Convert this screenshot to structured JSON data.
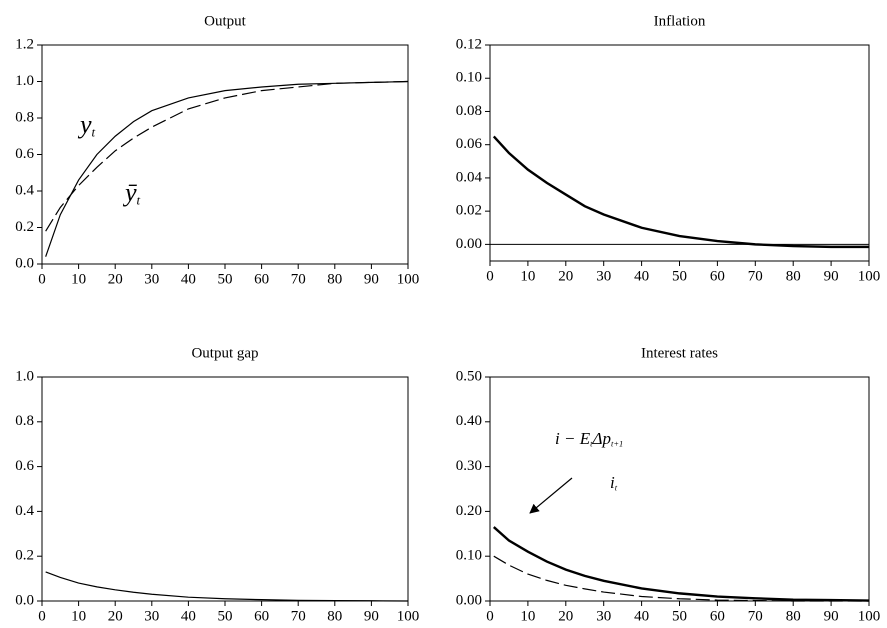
{
  "chart_data": [
    {
      "type": "line",
      "title": "Output",
      "x": [
        1,
        5,
        10,
        15,
        20,
        25,
        30,
        40,
        50,
        60,
        70,
        80,
        90,
        100
      ],
      "series": [
        {
          "color": "#000000",
          "dash": false,
          "width": 1,
          "values": [
            0.04,
            0.27,
            0.46,
            0.6,
            0.7,
            0.78,
            0.84,
            0.91,
            0.95,
            0.97,
            0.985,
            0.99,
            0.995,
            1.0
          ]
        },
        {
          "color": "#000000",
          "dash": true,
          "width": 1,
          "values": [
            0.18,
            0.31,
            0.43,
            0.53,
            0.62,
            0.69,
            0.75,
            0.85,
            0.91,
            0.95,
            0.97,
            0.99,
            0.995,
            1.0
          ]
        }
      ],
      "xlim": [
        0,
        100
      ],
      "xticks": [
        0,
        10,
        20,
        30,
        40,
        50,
        60,
        70,
        80,
        90,
        100
      ],
      "ylim": [
        0,
        1.2
      ],
      "yticks": [
        {
          "value": 0,
          "label": "0.0"
        },
        {
          "value": 0.2,
          "label": "0.2"
        },
        {
          "value": 0.4,
          "label": "0.4"
        },
        {
          "value": 0.6,
          "label": "0.6"
        },
        {
          "value": 0.8,
          "label": "0.8"
        },
        {
          "value": 1,
          "label": "1.0"
        },
        {
          "value": 1.2,
          "label": "1.2"
        }
      ],
      "annotations": [
        {
          "text": [
            "y"
          ],
          "sub": [
            "t"
          ]
        },
        {
          "text": [
            "ȳ"
          ],
          "sub": [
            "t"
          ]
        }
      ]
    },
    {
      "type": "line",
      "title": "Inflation",
      "x": [
        1,
        5,
        10,
        15,
        20,
        25,
        30,
        40,
        50,
        60,
        70,
        80,
        90,
        100
      ],
      "series": [
        {
          "color": "#000000",
          "dash": false,
          "width": 2,
          "values": [
            0.065,
            0.055,
            0.045,
            0.037,
            0.03,
            0.023,
            0.018,
            0.01,
            0.005,
            0.002,
            0.0,
            -0.001,
            -0.0015,
            -0.0015
          ]
        }
      ],
      "zero_line": true,
      "xlim": [
        0,
        100
      ],
      "xticks": [
        0,
        10,
        20,
        30,
        40,
        50,
        60,
        70,
        80,
        90,
        100
      ],
      "ylim": [
        -0.01,
        0.12
      ],
      "yticks": [
        {
          "value": 0,
          "label": "0.00"
        },
        {
          "value": 0.02,
          "label": "0.02"
        },
        {
          "value": 0.04,
          "label": "0.04"
        },
        {
          "value": 0.06,
          "label": "0.06"
        },
        {
          "value": 0.08,
          "label": "0.08"
        },
        {
          "value": 0.1,
          "label": "0.10"
        },
        {
          "value": 0.12,
          "label": "0.12"
        }
      ]
    },
    {
      "type": "line",
      "title": "Output gap",
      "x": [
        1,
        5,
        10,
        15,
        20,
        25,
        30,
        40,
        50,
        60,
        70,
        80,
        90,
        100
      ],
      "series": [
        {
          "color": "#000000",
          "dash": false,
          "width": 1,
          "values": [
            0.13,
            0.105,
            0.08,
            0.063,
            0.05,
            0.039,
            0.03,
            0.017,
            0.01,
            0.006,
            0.003,
            0.002,
            0.001,
            0.0
          ]
        }
      ],
      "xlim": [
        0,
        100
      ],
      "xticks": [
        0,
        10,
        20,
        30,
        40,
        50,
        60,
        70,
        80,
        90,
        100
      ],
      "ylim": [
        0,
        1.0
      ],
      "yticks": [
        {
          "value": 0,
          "label": "0.0"
        },
        {
          "value": 0.2,
          "label": "0.2"
        },
        {
          "value": 0.4,
          "label": "0.4"
        },
        {
          "value": 0.6,
          "label": "0.6"
        },
        {
          "value": 0.8,
          "label": "0.8"
        },
        {
          "value": 1,
          "label": "1.0"
        }
      ]
    },
    {
      "type": "line",
      "title": "Interest rates",
      "x": [
        1,
        5,
        10,
        15,
        20,
        25,
        30,
        40,
        50,
        60,
        70,
        80,
        90,
        100
      ],
      "series": [
        {
          "color": "#000000",
          "dash": false,
          "width": 2,
          "values": [
            0.165,
            0.135,
            0.11,
            0.088,
            0.07,
            0.056,
            0.045,
            0.028,
            0.017,
            0.01,
            0.006,
            0.003,
            0.002,
            0.001
          ]
        },
        {
          "color": "#000000",
          "dash": true,
          "width": 1,
          "values": [
            0.1,
            0.08,
            0.06,
            0.046,
            0.035,
            0.027,
            0.02,
            0.01,
            0.005,
            0.002,
            0.001,
            0.0,
            0.0,
            0.0
          ]
        }
      ],
      "xlim": [
        0,
        100
      ],
      "xticks": [
        0,
        10,
        20,
        30,
        40,
        50,
        60,
        70,
        80,
        90,
        100
      ],
      "ylim": [
        0,
        0.5
      ],
      "yticks": [
        {
          "value": 0,
          "label": "0.00"
        },
        {
          "value": 0.1,
          "label": "0.10"
        },
        {
          "value": 0.2,
          "label": "0.20"
        },
        {
          "value": 0.3,
          "label": "0.30"
        },
        {
          "value": 0.4,
          "label": "0.40"
        },
        {
          "value": 0.5,
          "label": "0.50"
        }
      ],
      "annotations": [
        {
          "text": [
            "i − E",
            "Δp"
          ],
          "sub": [
            "t",
            "t+1"
          ]
        },
        {
          "text": [
            "i"
          ],
          "sub": [
            "t"
          ]
        }
      ]
    }
  ]
}
